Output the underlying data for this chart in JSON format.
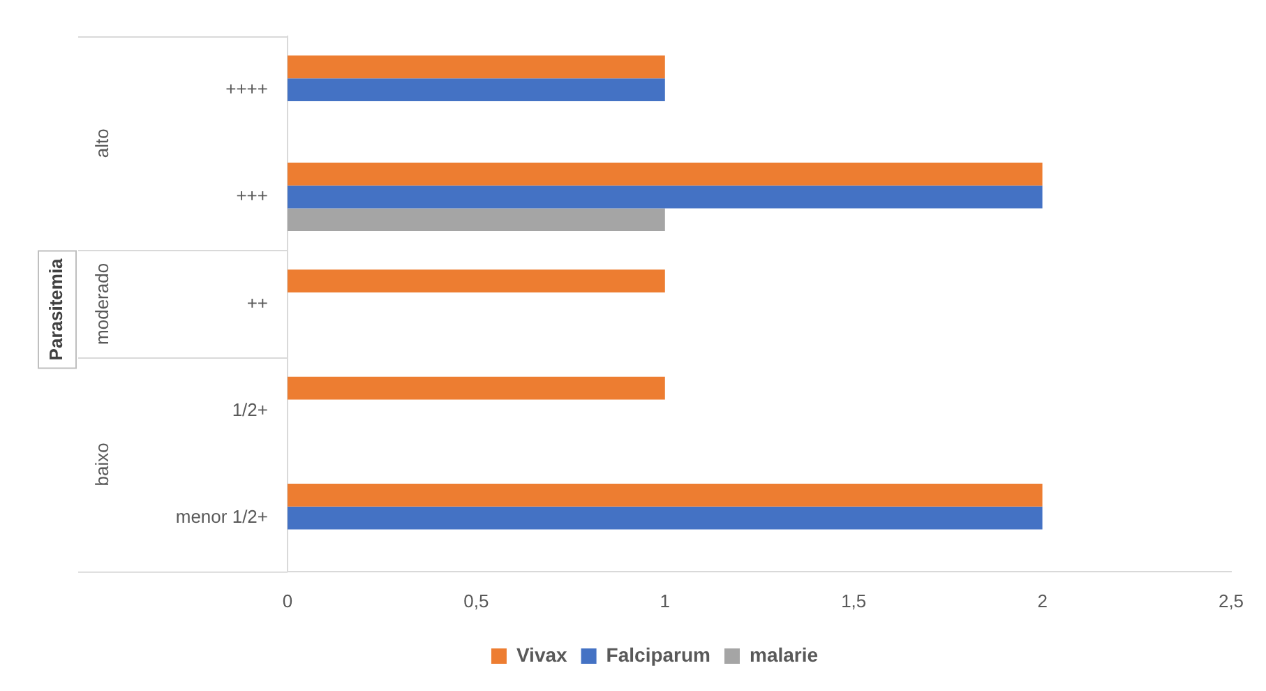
{
  "chart_data": {
    "type": "bar",
    "orientation": "horizontal",
    "categories": [
      "++++",
      "+++",
      "++",
      "1/2+",
      "menor 1/2+"
    ],
    "series": [
      {
        "name": "Vivax",
        "color": "#ed7d31",
        "values": [
          1,
          2,
          1,
          1,
          2
        ]
      },
      {
        "name": "Falciparum",
        "color": "#4472c4",
        "values": [
          1,
          2,
          null,
          null,
          2
        ]
      },
      {
        "name": "malarie",
        "color": "#a5a5a5",
        "values": [
          null,
          1,
          null,
          null,
          null
        ]
      }
    ],
    "xlim": [
      0,
      2.5
    ],
    "xticks": [
      {
        "value": 0,
        "label": "0"
      },
      {
        "value": 0.5,
        "label": "0,5"
      },
      {
        "value": 1,
        "label": "1"
      },
      {
        "value": 1.5,
        "label": "1,5"
      },
      {
        "value": 2,
        "label": "2"
      },
      {
        "value": 2.5,
        "label": "2,5"
      }
    ],
    "grid": false,
    "legend": "bottom",
    "annotations": [
      "Parasitemia",
      "alto",
      "moderado",
      "baixo"
    ]
  }
}
